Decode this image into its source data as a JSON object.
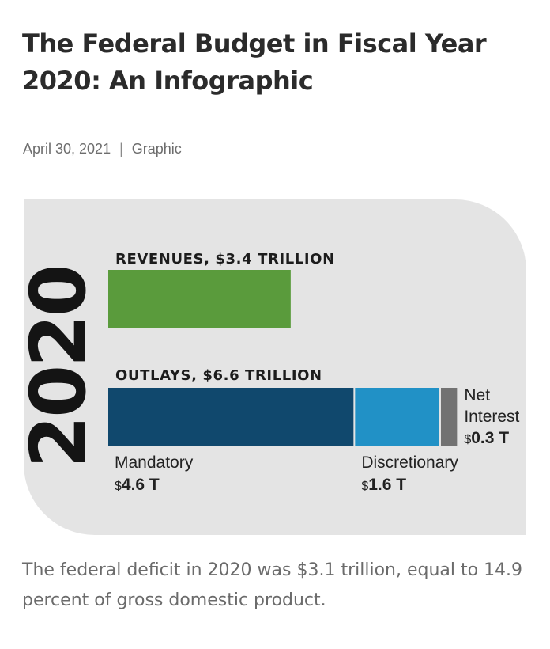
{
  "page": {
    "title": "The Federal Budget in Fiscal Year 2020: An Infographic",
    "date": "April 30, 2021",
    "separator": "|",
    "category": "Graphic",
    "footer": "The federal deficit in 2020 was $3.1 trillion, equal to 14.9 percent of gross domestic product."
  },
  "chart_data": {
    "type": "bar",
    "orientation": "horizontal",
    "year_label": "2020",
    "unit": "trillions of dollars",
    "rows": [
      {
        "name": "revenues",
        "header": "REVENUES, $3.4 TRILLION",
        "total": 3.4,
        "segments": [
          {
            "name": "Revenues",
            "value": 3.4,
            "color": "#5a9b3c"
          }
        ]
      },
      {
        "name": "outlays",
        "header": "OUTLAYS, $6.6 TRILLION",
        "total": 6.6,
        "segments": [
          {
            "name": "Mandatory",
            "value": 4.6,
            "value_label": "4.6 T",
            "color": "#10486d"
          },
          {
            "name": "Discretionary",
            "value": 1.6,
            "value_label": "1.6 T",
            "color": "#2191c6"
          },
          {
            "name": "Net Interest",
            "name_lines": [
              "Net",
              "Interest"
            ],
            "value": 0.3,
            "value_label": "0.3 T",
            "color": "#727272"
          }
        ]
      }
    ],
    "currency_symbol": "$",
    "colors": {
      "panel": "#e4e4e4",
      "year": "#141414",
      "text": "#222222"
    }
  }
}
